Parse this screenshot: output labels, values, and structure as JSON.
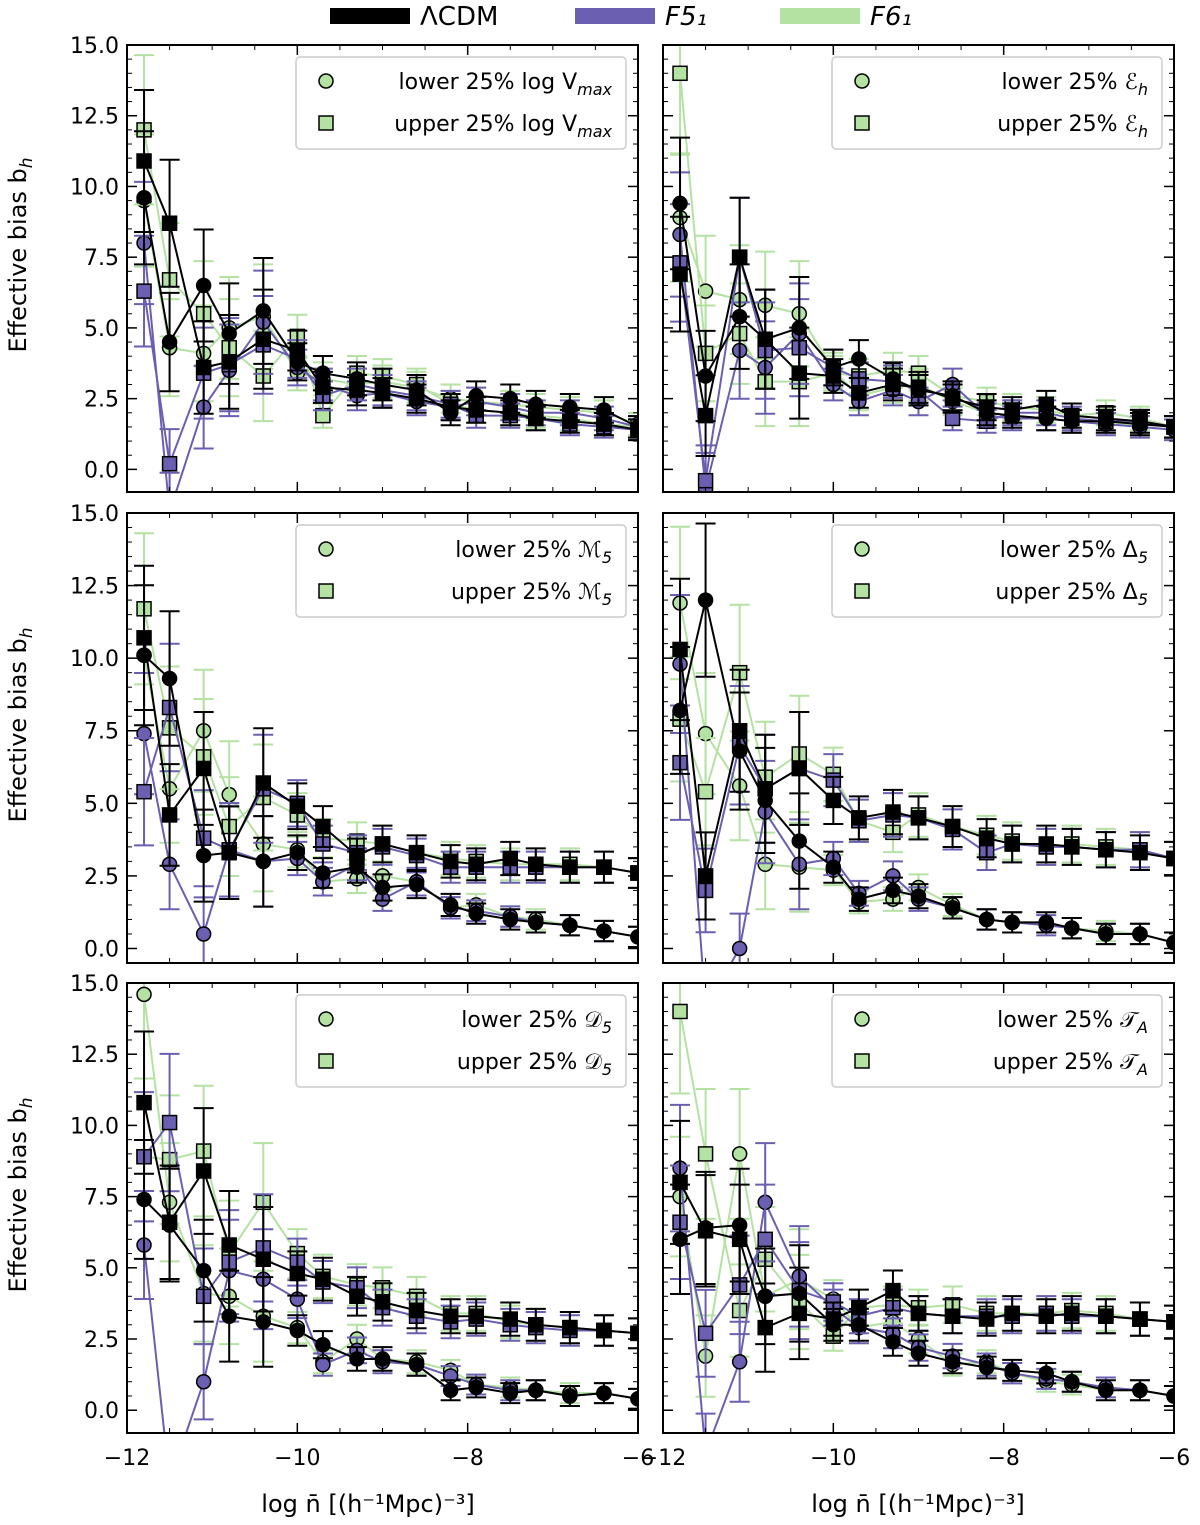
{
  "figure": {
    "legend": [
      {
        "label": "ΛCDM",
        "color": "#000000"
      },
      {
        "label": "F5₁",
        "color": "#6a5fb0"
      },
      {
        "label": "F6₁",
        "color": "#b4e2a2"
      }
    ],
    "ylabel": "Effective bias b",
    "ylabel_sub": "h",
    "xlabel": "log n̄ [(h⁻¹Mpc)⁻³]"
  },
  "chart_data": [
    {
      "type": "line",
      "panel": "top-left",
      "xlim": [
        -12,
        -6
      ],
      "ylim": [
        -0.8,
        15
      ],
      "xticks": [
        "-12",
        "-10",
        "-8",
        "-6"
      ],
      "yticks": [
        "0.0",
        "2.5",
        "5.0",
        "7.5",
        "10.0",
        "12.5",
        "15.0"
      ],
      "legend_position": "top-right",
      "legend": [
        "lower 25% log V",
        "upper 25% log V"
      ],
      "legend_sub": "max",
      "x": [
        -11.8,
        -11.5,
        -11.1,
        -10.8,
        -10.4,
        -10.0,
        -9.7,
        -9.3,
        -9.0,
        -8.6,
        -8.2,
        -7.9,
        -7.5,
        -7.2,
        -6.8,
        -6.4,
        -6.0
      ],
      "series": [
        {
          "name": "ΛCDM lower",
          "values": [
            9.6,
            4.5,
            6.5,
            4.8,
            5.6,
            3.8,
            3.4,
            3.2,
            3.0,
            2.8,
            2.0,
            2.6,
            2.5,
            2.3,
            2.2,
            2.1,
            1.5
          ]
        },
        {
          "name": "ΛCDM upper",
          "values": [
            10.9,
            8.7,
            3.6,
            3.8,
            4.6,
            4.2,
            2.9,
            2.8,
            2.7,
            2.5,
            2.2,
            2.1,
            2.0,
            1.8,
            1.7,
            1.6,
            1.4
          ]
        },
        {
          "name": "F5₁ lower",
          "values": [
            8.0,
            -1.5,
            2.2,
            3.5,
            5.2,
            3.6,
            3.0,
            2.6,
            2.7,
            2.4,
            2.2,
            2.4,
            2.2,
            2.0,
            2.0,
            1.8,
            1.5
          ]
        },
        {
          "name": "F5₁ upper",
          "values": [
            6.3,
            0.2,
            3.4,
            3.7,
            4.4,
            3.9,
            2.6,
            3.0,
            2.8,
            2.6,
            2.3,
            1.9,
            1.9,
            1.8,
            1.6,
            1.5,
            1.4
          ]
        },
        {
          "name": "F6₁ lower",
          "values": [
            9.5,
            4.3,
            4.1,
            5.0,
            5.4,
            3.4,
            3.2,
            3.0,
            3.1,
            2.9,
            2.5,
            2.4,
            2.3,
            2.2,
            2.1,
            2.0,
            1.6
          ]
        },
        {
          "name": "F6₁ upper",
          "values": [
            12.0,
            6.7,
            5.5,
            4.3,
            3.3,
            4.7,
            1.9,
            3.4,
            3.3,
            3.0,
            2.3,
            2.1,
            2.0,
            1.9,
            1.8,
            1.6,
            1.5
          ]
        }
      ]
    },
    {
      "type": "line",
      "panel": "top-right",
      "xlim": [
        -12,
        -6
      ],
      "ylim": [
        -0.8,
        15
      ],
      "xticks": [
        "-12",
        "-10",
        "-8",
        "-6"
      ],
      "yticks": [],
      "legend_position": "top-right",
      "legend": [
        "lower 25% ℰ",
        "upper 25% ℰ"
      ],
      "legend_sub": "h",
      "x": [
        -11.8,
        -11.5,
        -11.1,
        -10.8,
        -10.4,
        -10.0,
        -9.7,
        -9.3,
        -9.0,
        -8.6,
        -8.2,
        -7.9,
        -7.5,
        -7.2,
        -6.8,
        -6.4,
        -6.0
      ],
      "series": [
        {
          "name": "ΛCDM lower",
          "values": [
            9.4,
            3.3,
            5.4,
            4.6,
            5.0,
            3.6,
            3.9,
            3.2,
            2.8,
            2.6,
            2.0,
            1.9,
            1.8,
            1.7,
            1.7,
            1.6,
            1.5
          ]
        },
        {
          "name": "ΛCDM upper",
          "values": [
            6.9,
            1.9,
            7.5,
            4.6,
            3.4,
            3.3,
            2.7,
            3.0,
            2.9,
            2.5,
            2.2,
            2.1,
            2.3,
            1.9,
            1.8,
            1.7,
            1.5
          ]
        },
        {
          "name": "F5₁ lower",
          "values": [
            8.3,
            -0.7,
            4.2,
            3.6,
            4.8,
            3.0,
            2.4,
            2.8,
            2.4,
            3.0,
            1.9,
            1.8,
            1.8,
            1.7,
            1.6,
            1.5,
            1.4
          ]
        },
        {
          "name": "F5₁ upper",
          "values": [
            7.3,
            -0.4,
            7.5,
            4.2,
            4.3,
            3.6,
            3.2,
            3.1,
            2.8,
            1.8,
            1.7,
            2.0,
            2.0,
            1.8,
            1.7,
            1.7,
            1.5
          ]
        },
        {
          "name": "F6₁ lower",
          "values": [
            8.9,
            6.3,
            6.0,
            5.8,
            5.5,
            3.5,
            2.6,
            2.9,
            3.0,
            2.4,
            2.0,
            1.9,
            1.8,
            1.7,
            1.6,
            1.6,
            1.5
          ]
        },
        {
          "name": "F6₁ upper",
          "values": [
            14.0,
            4.1,
            4.8,
            3.1,
            3.1,
            3.4,
            3.3,
            3.5,
            3.4,
            2.6,
            2.4,
            2.2,
            2.1,
            1.9,
            2.0,
            1.8,
            1.5
          ]
        }
      ]
    },
    {
      "type": "line",
      "panel": "middle-left",
      "xlim": [
        -12,
        -6
      ],
      "ylim": [
        -0.5,
        15
      ],
      "xticks": [
        "-12",
        "-10",
        "-8",
        "-6"
      ],
      "yticks": [
        "0.0",
        "2.5",
        "5.0",
        "7.5",
        "10.0",
        "12.5",
        "15.0"
      ],
      "legend_position": "top-right",
      "legend": [
        "lower 25% ℳ",
        "upper 25% ℳ"
      ],
      "legend_sub": "5",
      "x": [
        -11.8,
        -11.5,
        -11.1,
        -10.8,
        -10.4,
        -10.0,
        -9.7,
        -9.3,
        -9.0,
        -8.6,
        -8.2,
        -7.9,
        -7.5,
        -7.2,
        -6.8,
        -6.4,
        -6.0
      ],
      "series": [
        {
          "name": "ΛCDM lower",
          "values": [
            10.1,
            9.3,
            3.2,
            3.3,
            3.0,
            3.3,
            2.6,
            2.8,
            2.1,
            2.2,
            1.5,
            1.2,
            1.0,
            0.9,
            0.8,
            0.6,
            0.4
          ]
        },
        {
          "name": "ΛCDM upper",
          "values": [
            10.7,
            4.6,
            6.2,
            3.3,
            5.7,
            4.9,
            4.2,
            3.2,
            3.6,
            3.3,
            3.0,
            2.9,
            3.1,
            2.9,
            2.8,
            2.8,
            2.6
          ]
        },
        {
          "name": "F5₁ lower",
          "values": [
            7.4,
            2.9,
            0.5,
            3.4,
            3.0,
            3.1,
            2.3,
            2.9,
            1.7,
            2.3,
            1.4,
            1.3,
            1.1,
            0.9,
            0.8,
            0.6,
            0.4
          ]
        },
        {
          "name": "F5₁ upper",
          "values": [
            5.4,
            8.3,
            3.8,
            3.4,
            5.5,
            5.0,
            3.6,
            3.3,
            3.5,
            3.2,
            2.8,
            2.8,
            2.8,
            2.8,
            2.8,
            2.8,
            2.6
          ]
        },
        {
          "name": "F6₁ lower",
          "values": [
            10.1,
            5.5,
            7.5,
            5.3,
            3.6,
            3.4,
            2.3,
            2.4,
            2.5,
            2.3,
            1.4,
            1.5,
            1.1,
            1.0,
            0.8,
            0.6,
            0.4
          ]
        },
        {
          "name": "F6₁ upper",
          "values": [
            11.7,
            7.6,
            6.6,
            4.2,
            5.2,
            4.6,
            3.8,
            3.7,
            3.6,
            3.3,
            3.1,
            3.0,
            2.9,
            2.9,
            2.9,
            2.8,
            2.6
          ]
        }
      ]
    },
    {
      "type": "line",
      "panel": "middle-right",
      "xlim": [
        -12,
        -6
      ],
      "ylim": [
        -0.5,
        15
      ],
      "xticks": [
        "-12",
        "-10",
        "-8",
        "-6"
      ],
      "yticks": [],
      "legend_position": "top-right",
      "legend": [
        "lower 25% Δ",
        "upper 25% Δ"
      ],
      "legend_sub": "5",
      "x": [
        -11.8,
        -11.5,
        -11.1,
        -10.8,
        -10.4,
        -10.0,
        -9.7,
        -9.3,
        -9.0,
        -8.6,
        -8.2,
        -7.9,
        -7.5,
        -7.2,
        -6.8,
        -6.4,
        -6.0
      ],
      "series": [
        {
          "name": "ΛCDM lower",
          "values": [
            8.2,
            12.0,
            6.8,
            5.1,
            3.7,
            2.8,
            1.7,
            2.0,
            1.8,
            1.4,
            1.0,
            0.9,
            0.9,
            0.7,
            0.5,
            0.5,
            0.2
          ]
        },
        {
          "name": "ΛCDM upper",
          "values": [
            10.3,
            2.5,
            7.5,
            5.5,
            6.2,
            5.1,
            4.5,
            4.7,
            4.5,
            4.2,
            3.8,
            3.6,
            3.6,
            3.5,
            3.4,
            3.3,
            3.1
          ]
        },
        {
          "name": "F5₁ lower",
          "values": [
            9.8,
            -2.0,
            0.0,
            4.7,
            2.9,
            3.1,
            1.9,
            2.5,
            1.7,
            1.4,
            1.0,
            0.9,
            0.8,
            0.7,
            0.5,
            0.5,
            0.2
          ]
        },
        {
          "name": "F5₁ upper",
          "values": [
            6.4,
            2.0,
            7.0,
            5.5,
            6.2,
            5.8,
            4.4,
            4.6,
            4.5,
            4.1,
            3.3,
            3.6,
            3.5,
            3.5,
            3.4,
            3.4,
            3.1
          ]
        },
        {
          "name": "F6₁ lower",
          "values": [
            11.9,
            7.4,
            5.6,
            2.9,
            2.8,
            2.7,
            1.6,
            1.7,
            2.1,
            1.5,
            1.0,
            0.9,
            0.9,
            0.7,
            0.6,
            0.5,
            0.2
          ]
        },
        {
          "name": "F6₁ upper",
          "values": [
            7.9,
            5.4,
            9.5,
            5.9,
            6.7,
            6.0,
            4.4,
            4.0,
            4.6,
            4.2,
            3.9,
            3.7,
            3.5,
            3.6,
            3.5,
            3.4,
            3.1
          ]
        }
      ]
    },
    {
      "type": "line",
      "panel": "bottom-left",
      "xlim": [
        -12,
        -6
      ],
      "ylim": [
        -0.8,
        15
      ],
      "xticks": [
        "-12",
        "-10",
        "-8",
        "-6"
      ],
      "yticks": [
        "0.0",
        "2.5",
        "5.0",
        "7.5",
        "10.0",
        "12.5",
        "15.0"
      ],
      "legend_position": "top-right",
      "legend": [
        "lower 25% 𝒟",
        "upper 25% 𝒟"
      ],
      "legend_sub": "5",
      "x": [
        -11.8,
        -11.5,
        -11.1,
        -10.8,
        -10.4,
        -10.0,
        -9.7,
        -9.3,
        -9.0,
        -8.6,
        -8.2,
        -7.9,
        -7.5,
        -7.2,
        -6.8,
        -6.4,
        -6.0
      ],
      "series": [
        {
          "name": "ΛCDM lower",
          "values": [
            7.4,
            6.5,
            4.9,
            3.3,
            3.1,
            2.8,
            2.3,
            1.8,
            1.8,
            1.6,
            0.7,
            0.8,
            0.6,
            0.7,
            0.5,
            0.6,
            0.4
          ]
        },
        {
          "name": "ΛCDM upper",
          "values": [
            10.8,
            6.6,
            8.4,
            5.8,
            5.3,
            4.8,
            4.6,
            4.0,
            3.8,
            3.5,
            3.3,
            3.3,
            3.2,
            3.0,
            2.9,
            2.8,
            2.7
          ]
        },
        {
          "name": "F5₁ lower",
          "values": [
            5.8,
            -2.5,
            1.0,
            4.9,
            4.6,
            3.9,
            1.6,
            2.1,
            1.7,
            1.6,
            1.2,
            0.9,
            0.7,
            0.7,
            0.5,
            0.6,
            0.4
          ]
        },
        {
          "name": "F5₁ upper",
          "values": [
            8.9,
            10.1,
            4.0,
            5.2,
            5.7,
            5.2,
            4.5,
            4.3,
            3.6,
            3.3,
            3.1,
            3.2,
            3.0,
            2.9,
            2.8,
            2.8,
            2.7
          ]
        },
        {
          "name": "F6₁ lower",
          "values": [
            14.6,
            7.3,
            4.1,
            4.0,
            3.3,
            2.9,
            1.7,
            2.5,
            1.8,
            1.7,
            1.4,
            0.9,
            0.8,
            0.7,
            0.6,
            0.6,
            0.4
          ]
        },
        {
          "name": "F6₁ upper",
          "values": [
            8.9,
            8.8,
            9.1,
            5.5,
            7.3,
            5.5,
            4.7,
            4.4,
            4.3,
            4.0,
            3.4,
            3.4,
            3.1,
            3.0,
            2.9,
            2.8,
            2.7
          ]
        }
      ]
    },
    {
      "type": "line",
      "panel": "bottom-right",
      "xlim": [
        -12,
        -6
      ],
      "ylim": [
        -0.8,
        15
      ],
      "xticks": [
        "-12",
        "-10",
        "-8",
        "-6"
      ],
      "yticks": [],
      "legend_position": "top-right",
      "legend": [
        "lower 25% 𝒯",
        "upper 25% 𝒯"
      ],
      "legend_sub": "A",
      "x": [
        -11.8,
        -11.5,
        -11.1,
        -10.8,
        -10.4,
        -10.0,
        -9.7,
        -9.3,
        -9.0,
        -8.6,
        -8.2,
        -7.9,
        -7.5,
        -7.2,
        -6.8,
        -6.4,
        -6.0
      ],
      "series": [
        {
          "name": "ΛCDM lower",
          "values": [
            6.0,
            6.4,
            6.5,
            4.0,
            4.1,
            3.0,
            3.0,
            2.4,
            2.0,
            1.7,
            1.5,
            1.4,
            1.3,
            1.0,
            0.7,
            0.7,
            0.5
          ]
        },
        {
          "name": "ΛCDM upper",
          "values": [
            8.0,
            6.3,
            6.0,
            2.9,
            3.4,
            3.2,
            3.6,
            4.2,
            3.4,
            3.3,
            3.2,
            3.4,
            3.3,
            3.4,
            3.3,
            3.2,
            3.1
          ]
        },
        {
          "name": "F5₁ lower",
          "values": [
            8.5,
            -1.5,
            1.7,
            7.3,
            4.7,
            3.6,
            2.9,
            2.7,
            2.2,
            1.9,
            1.6,
            1.3,
            1.1,
            1.0,
            0.8,
            0.7,
            0.5
          ]
        },
        {
          "name": "F5₁ upper",
          "values": [
            6.6,
            2.7,
            4.4,
            6.0,
            4.2,
            3.8,
            3.3,
            3.6,
            3.4,
            3.3,
            3.3,
            3.3,
            3.4,
            3.3,
            3.3,
            3.2,
            3.1
          ]
        },
        {
          "name": "F6₁ lower",
          "values": [
            7.5,
            1.9,
            9.0,
            4.0,
            4.6,
            3.9,
            2.9,
            3.1,
            2.5,
            1.6,
            1.7,
            1.3,
            1.0,
            0.9,
            0.7,
            0.7,
            0.5
          ]
        },
        {
          "name": "F6₁ upper",
          "values": [
            14.0,
            9.0,
            3.5,
            5.3,
            3.8,
            2.6,
            3.6,
            3.7,
            3.6,
            3.7,
            3.4,
            3.4,
            3.4,
            3.5,
            3.4,
            3.2,
            3.1
          ]
        }
      ]
    }
  ]
}
